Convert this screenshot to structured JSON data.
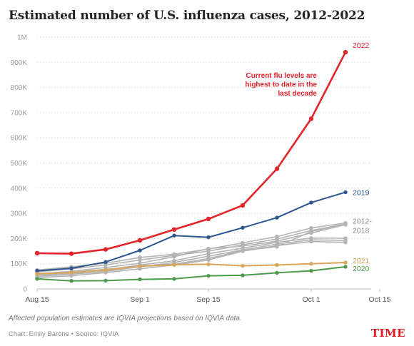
{
  "title": "Estimated number of U.S. influenza cases, 2012-2022",
  "note": "Affected population estimates are IQVIA projections based on IQVIA data.",
  "source": "Chart: Emily Barone • Source: IQVIA",
  "logo_text": "TIME",
  "chart_data": {
    "type": "line",
    "title": "Estimated number of U.S. influenza cases, 2012-2022",
    "x_tick_labels": [
      "Aug 15",
      "Sep 1",
      "Sep 15",
      "Oct 1",
      "Oct 15"
    ],
    "x_tick_index": [
      0,
      3,
      5,
      8,
      10
    ],
    "y_ticks": [
      "0",
      "100K",
      "200K",
      "300K",
      "400K",
      "500K",
      "600K",
      "700K",
      "800K",
      "900K",
      "1M"
    ],
    "ylim": [
      0,
      1000000
    ],
    "grid": true,
    "annotation": [
      "Current flu levels are",
      "highest to date in the",
      "last decade"
    ],
    "colors": {
      "y2022": "#e3242b",
      "y2019": "#2d5592",
      "y2021": "#d9a65a",
      "y2020": "#4c9a4a",
      "range": "#b3b3b3"
    },
    "series": [
      {
        "name": "2022",
        "color": "#e3242b",
        "width": 2.6,
        "points": true,
        "label_lines": [
          "2022"
        ],
        "values": [
          142000,
          140000,
          157000,
          193000,
          236000,
          278000,
          332000,
          477000,
          676000,
          940000
        ]
      },
      {
        "name": "2019",
        "color": "#2d5592",
        "width": 2,
        "points": true,
        "label_lines": [
          "2019"
        ],
        "values": [
          72000,
          82000,
          107000,
          153000,
          212000,
          205000,
          243000,
          283000,
          343000,
          384000
        ]
      },
      {
        "name": "2012-2018",
        "color": "#b3b3b3",
        "width": 1.6,
        "points": true,
        "label_lines": [
          "2012-",
          "2018"
        ],
        "values": [
          75000,
          88000,
          102000,
          125000,
          138000,
          158000,
          183000,
          208000,
          242000,
          262000
        ]
      },
      {
        "name": "",
        "color": "#b3b3b3",
        "width": 1.6,
        "points": true,
        "values": [
          68000,
          80000,
          95000,
          115000,
          133000,
          150000,
          175000,
          198000,
          232000,
          258000
        ]
      },
      {
        "name": "",
        "color": "#b3b3b3",
        "width": 1.6,
        "points": true,
        "values": [
          60000,
          70000,
          85000,
          102000,
          128000,
          160000,
          170000,
          190000,
          222000,
          255000
        ]
      },
      {
        "name": "",
        "color": "#b3b3b3",
        "width": 1.6,
        "points": true,
        "values": [
          55000,
          62000,
          75000,
          95000,
          112000,
          140000,
          162000,
          185000,
          202000,
          201000
        ]
      },
      {
        "name": "",
        "color": "#b3b3b3",
        "width": 1.6,
        "points": true,
        "values": [
          50000,
          58000,
          70000,
          88000,
          105000,
          130000,
          155000,
          178000,
          195000,
          193000
        ]
      },
      {
        "name": "",
        "color": "#b3b3b3",
        "width": 1.6,
        "points": true,
        "values": [
          45000,
          52000,
          65000,
          80000,
          95000,
          115000,
          150000,
          172000,
          188000,
          185000
        ]
      },
      {
        "name": "",
        "color": "#b3b3b3",
        "width": 1.6,
        "points": true,
        "values": [
          62000,
          66000,
          78000,
          92000,
          98000,
          121000,
          152000,
          168000,
          228000,
          258000
        ]
      },
      {
        "name": "2021",
        "color": "#d9a65a",
        "width": 2,
        "points": true,
        "label_lines": [
          "2021"
        ],
        "values": [
          60000,
          65000,
          75000,
          90000,
          96000,
          98000,
          92000,
          95000,
          100000,
          105000
        ]
      },
      {
        "name": "2020",
        "color": "#4c9a4a",
        "width": 2,
        "points": true,
        "label_lines": [
          "2020"
        ],
        "values": [
          40000,
          32000,
          33000,
          38000,
          40000,
          52000,
          54000,
          64000,
          72000,
          88000
        ]
      }
    ]
  }
}
